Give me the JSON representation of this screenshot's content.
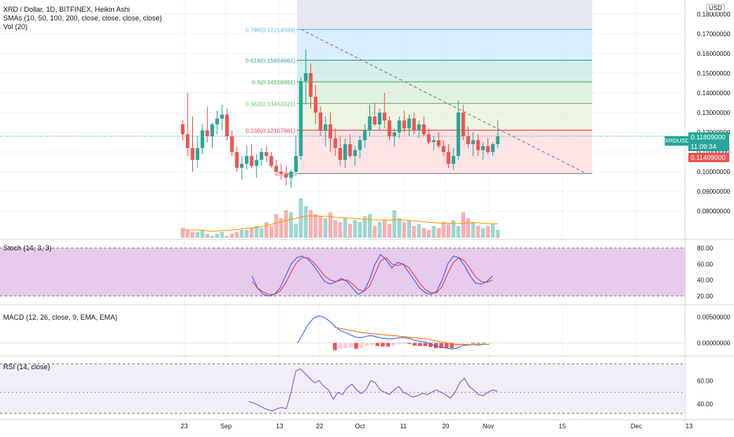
{
  "header": {
    "title": "XRD / Dollar, 1D, BITFINEX, Heikin Ashi",
    "sma_label": "SMAs (10, 50, 100, 200, close, close, close, close)",
    "vol_label": "Vol (20)"
  },
  "currency_badge": "USD",
  "symbol_tag": "XRDUSD",
  "price_tags": {
    "last": "0.11809000",
    "countdown": "11:09:34",
    "prev": "0.11409000"
  },
  "colors": {
    "up": "#26a69a",
    "down": "#ef5350",
    "stoch_k": "#2962ff",
    "stoch_d": "#f23645",
    "macd_line": "#2962ff",
    "signal_line": "#ff6d00",
    "rsi_line": "#7e57c2",
    "vol_ma": "#ff9800",
    "stoch_band": "#e1bee7",
    "rsi_band": "#ede7f6"
  },
  "chart_data": [
    {
      "type": "candlestick",
      "name": "price",
      "x_labels": [
        "23",
        "Sep",
        "13",
        "22",
        "Oct",
        "11",
        "20",
        "Nov",
        "15",
        "Dec",
        "13"
      ],
      "y_ticks": [
        "0.18000000",
        "0.17000000",
        "0.16000000",
        "0.15000000",
        "0.14000000",
        "0.13000000",
        "0.12000000",
        "0.11000000",
        "0.10000000",
        "0.09000000",
        "0.08000000"
      ],
      "ylim": [
        0.0745,
        0.1815
      ],
      "candles": [
        [
          0.124,
          0.126,
          0.116,
          0.119
        ],
        [
          0.119,
          0.14,
          0.108,
          0.112
        ],
        [
          0.112,
          0.128,
          0.1,
          0.106
        ],
        [
          0.106,
          0.118,
          0.102,
          0.112
        ],
        [
          0.112,
          0.124,
          0.109,
          0.121
        ],
        [
          0.121,
          0.133,
          0.115,
          0.118
        ],
        [
          0.118,
          0.125,
          0.112,
          0.124
        ],
        [
          0.124,
          0.131,
          0.119,
          0.127
        ],
        [
          0.127,
          0.134,
          0.121,
          0.129
        ],
        [
          0.129,
          0.132,
          0.116,
          0.118
        ],
        [
          0.118,
          0.121,
          0.108,
          0.11
        ],
        [
          0.11,
          0.113,
          0.1,
          0.102
        ],
        [
          0.102,
          0.108,
          0.096,
          0.104
        ],
        [
          0.104,
          0.113,
          0.101,
          0.108
        ],
        [
          0.108,
          0.114,
          0.102,
          0.103
        ],
        [
          0.103,
          0.109,
          0.097,
          0.106
        ],
        [
          0.106,
          0.112,
          0.103,
          0.11
        ],
        [
          0.11,
          0.113,
          0.105,
          0.108
        ],
        [
          0.108,
          0.11,
          0.102,
          0.103
        ],
        [
          0.103,
          0.106,
          0.098,
          0.1
        ],
        [
          0.1,
          0.104,
          0.096,
          0.099
        ],
        [
          0.099,
          0.103,
          0.093,
          0.097
        ],
        [
          0.097,
          0.101,
          0.092,
          0.1
        ],
        [
          0.1,
          0.118,
          0.098,
          0.108
        ],
        [
          0.108,
          0.148,
          0.106,
          0.146
        ],
        [
          0.146,
          0.162,
          0.134,
          0.15
        ],
        [
          0.15,
          0.155,
          0.132,
          0.138
        ],
        [
          0.138,
          0.144,
          0.124,
          0.13
        ],
        [
          0.13,
          0.133,
          0.118,
          0.121
        ],
        [
          0.121,
          0.128,
          0.113,
          0.124
        ],
        [
          0.124,
          0.13,
          0.11,
          0.117
        ],
        [
          0.117,
          0.122,
          0.108,
          0.112
        ],
        [
          0.112,
          0.118,
          0.103,
          0.106
        ],
        [
          0.106,
          0.117,
          0.102,
          0.114
        ],
        [
          0.114,
          0.119,
          0.107,
          0.108
        ],
        [
          0.108,
          0.113,
          0.103,
          0.111
        ],
        [
          0.111,
          0.118,
          0.107,
          0.116
        ],
        [
          0.116,
          0.124,
          0.112,
          0.121
        ],
        [
          0.121,
          0.134,
          0.118,
          0.128
        ],
        [
          0.128,
          0.135,
          0.123,
          0.124
        ],
        [
          0.124,
          0.132,
          0.121,
          0.13
        ],
        [
          0.13,
          0.14,
          0.122,
          0.126
        ],
        [
          0.126,
          0.128,
          0.116,
          0.118
        ],
        [
          0.118,
          0.122,
          0.113,
          0.12
        ],
        [
          0.12,
          0.128,
          0.117,
          0.126
        ],
        [
          0.126,
          0.131,
          0.12,
          0.122
        ],
        [
          0.122,
          0.129,
          0.118,
          0.127
        ],
        [
          0.127,
          0.13,
          0.119,
          0.121
        ],
        [
          0.121,
          0.126,
          0.117,
          0.124
        ],
        [
          0.124,
          0.128,
          0.118,
          0.119
        ],
        [
          0.119,
          0.122,
          0.114,
          0.115
        ],
        [
          0.115,
          0.118,
          0.111,
          0.116
        ],
        [
          0.116,
          0.12,
          0.112,
          0.113
        ],
        [
          0.113,
          0.116,
          0.108,
          0.11
        ],
        [
          0.11,
          0.114,
          0.102,
          0.104
        ],
        [
          0.104,
          0.112,
          0.101,
          0.108
        ],
        [
          0.108,
          0.136,
          0.106,
          0.13
        ],
        [
          0.13,
          0.134,
          0.116,
          0.118
        ],
        [
          0.118,
          0.123,
          0.112,
          0.114
        ],
        [
          0.114,
          0.12,
          0.108,
          0.116
        ],
        [
          0.116,
          0.119,
          0.108,
          0.111
        ],
        [
          0.111,
          0.115,
          0.106,
          0.113
        ],
        [
          0.113,
          0.117,
          0.109,
          0.11
        ],
        [
          0.11,
          0.115,
          0.108,
          0.114
        ],
        [
          0.114,
          0.126,
          0.112,
          0.118
        ]
      ],
      "fib_levels": [
        {
          "ratio": "0.786",
          "label": "0.786(0.17214599)",
          "value": 0.17214599,
          "color": "#64b5f6"
        },
        {
          "ratio": "0.618",
          "label": "0.618(0.15654661)",
          "value": 0.15654661,
          "color": "#26a69a"
        },
        {
          "ratio": "0.5",
          "label": "0.5(0.14558991)",
          "value": 0.14558991,
          "color": "#4caf50"
        },
        {
          "ratio": "0.382",
          "label": "0.382(0.13463321)",
          "value": 0.13463321,
          "color": "#66bb6a"
        },
        {
          "ratio": "0.236",
          "label": "0.236(0.12107661)",
          "value": 0.12107661,
          "color": "#f23645"
        },
        {
          "ratio": "0",
          "label": "0.0991",
          "value": 0.0991,
          "color": "#787b86"
        }
      ],
      "trendline": {
        "from": [
          24,
          0.1722
        ],
        "to": [
          82,
          0.0991
        ]
      },
      "volume": [
        5,
        4,
        3,
        3,
        4,
        2,
        1,
        2,
        3,
        1,
        2,
        3,
        4,
        4,
        5,
        6,
        5,
        8,
        6,
        12,
        10,
        14,
        13,
        7,
        20,
        16,
        14,
        12,
        11,
        10,
        13,
        9,
        8,
        10,
        7,
        9,
        8,
        11,
        12,
        6,
        8,
        9,
        7,
        14,
        10,
        8,
        9,
        6,
        7,
        5,
        4,
        6,
        5,
        8,
        7,
        9,
        6,
        13,
        10,
        8,
        6,
        5,
        6,
        7,
        4
      ],
      "vol_ma": [
        4,
        4,
        4,
        4,
        3.8,
        3.5,
        3.4,
        3.5,
        3.7,
        3.8,
        4,
        4.2,
        4.5,
        4.8,
        5,
        5.3,
        5.7,
        6.2,
        6.8,
        7.5,
        8.1,
        8.8,
        9.5,
        9.8,
        10.6,
        11,
        11.2,
        11.1,
        11,
        10.9,
        10.7,
        10.4,
        10.2,
        10.1,
        10,
        9.8,
        9.6,
        9.4,
        9.3,
        9.1,
        9,
        9,
        8.9,
        9.1,
        9.1,
        9,
        8.8,
        8.6,
        8.4,
        8.1,
        7.9,
        7.7,
        7.5,
        7.5,
        7.4,
        7.3,
        7.2,
        7.4,
        7.6,
        7.7,
        7.6,
        7.4,
        7.3,
        7.2,
        7.1
      ]
    },
    {
      "type": "line",
      "name": "Stoch (14, 3, 3)",
      "label": "Stoch (14, 3, 3)",
      "y_ticks": [
        "80.00",
        "60.00",
        "40.00",
        "20.00"
      ],
      "ylim": [
        15,
        82
      ],
      "bands": [
        20,
        80
      ],
      "series": [
        {
          "name": "K",
          "color": "#2962ff",
          "values": [
            45,
            30,
            22,
            20,
            22,
            30,
            45,
            60,
            68,
            70,
            66,
            58,
            48,
            38,
            35,
            38,
            42,
            38,
            30,
            22,
            26,
            40,
            60,
            72,
            65,
            55,
            62,
            60,
            50,
            40,
            30,
            24,
            22,
            26,
            40,
            60,
            70,
            68,
            58,
            45,
            36,
            35,
            38,
            45
          ]
        },
        {
          "name": "D",
          "color": "#f23645",
          "values": [
            38,
            30,
            25,
            22,
            22,
            26,
            36,
            50,
            62,
            68,
            68,
            62,
            54,
            45,
            40,
            38,
            40,
            40,
            35,
            28,
            26,
            32,
            48,
            64,
            68,
            60,
            58,
            60,
            56,
            46,
            36,
            28,
            24,
            24,
            32,
            48,
            62,
            68,
            64,
            54,
            44,
            38,
            37,
            40
          ]
        }
      ]
    },
    {
      "type": "bar+line",
      "name": "MACD (12, 26, close, 9, EMA, EMA)",
      "label": "MACD (12, 26, close, 9, EMA, EMA)",
      "y_ticks": [
        "0.00500000",
        "0.00000000"
      ],
      "ylim": [
        -0.0022,
        0.006
      ],
      "macd": [
        0.0,
        0.0018,
        0.0036,
        0.0048,
        0.0052,
        0.0049,
        0.0042,
        0.0032,
        0.0024,
        0.002,
        0.0015,
        0.0011,
        0.001,
        0.0013,
        0.0014,
        0.0011,
        0.0009,
        0.0008,
        0.0008,
        0.001,
        0.001,
        0.0009,
        0.0005,
        0.0003,
        0.0002,
        -0.0002,
        -0.0006,
        -0.0008,
        -0.001,
        -0.0012,
        -0.001,
        -0.0005,
        -0.0004,
        -0.0003,
        -0.0004,
        -0.0003,
        -0.0003
      ],
      "signal": [
        null,
        null,
        null,
        null,
        null,
        null,
        null,
        0.003,
        0.0028,
        0.0026,
        0.0024,
        0.0022,
        0.002,
        0.0019,
        0.0018,
        0.0017,
        0.0016,
        0.0015,
        0.0014,
        0.0013,
        0.0012,
        0.0011,
        0.001,
        0.0009,
        0.0008,
        0.0006,
        0.0004,
        0.0002,
        0.0,
        -0.0002,
        -0.0003,
        -0.0003,
        -0.0003,
        -0.0003,
        -0.0003,
        -0.0003,
        -0.0003
      ],
      "histogram": [
        null,
        null,
        null,
        null,
        null,
        null,
        null,
        -0.0014,
        -0.0012,
        -0.001,
        -0.0009,
        -0.0011,
        -0.001,
        -0.0006,
        -0.0004,
        -0.0006,
        -0.0007,
        -0.0007,
        -0.0006,
        -0.0003,
        -0.0002,
        -0.0002,
        -0.0005,
        -0.0006,
        -0.0006,
        -0.0008,
        -0.001,
        -0.001,
        -0.001,
        -0.001,
        -0.0007,
        -0.0002,
        -0.0001,
        0.0,
        -0.0001,
        0.0,
        0.0
      ]
    },
    {
      "type": "line",
      "name": "RSI (14, close)",
      "label": "RSI (14, close)",
      "y_ticks": [
        "60.00",
        "40.00"
      ],
      "ylim": [
        32,
        75
      ],
      "bands": [
        30,
        70
      ],
      "mid": 50,
      "values": [
        42,
        41,
        39,
        37,
        35,
        34,
        36,
        37,
        36,
        50,
        68,
        70,
        66,
        62,
        58,
        60,
        55,
        52,
        44,
        50,
        48,
        54,
        57,
        52,
        49,
        52,
        60,
        58,
        52,
        50,
        48,
        52,
        55,
        50,
        48,
        46,
        47,
        49,
        48,
        50,
        52,
        50,
        48,
        45,
        50,
        58,
        62,
        55,
        52,
        48,
        47,
        50,
        52,
        51
      ]
    }
  ]
}
